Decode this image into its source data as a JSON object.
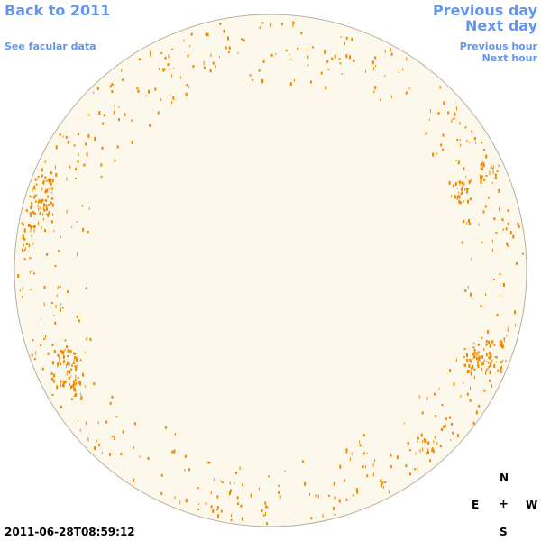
{
  "nav": {
    "back_label": "Back to 2011",
    "facular_label": "See facular data",
    "prev_day_label": "Previous day",
    "next_day_label": "Next day",
    "prev_hour_label": "Previous hour",
    "next_hour_label": "Next hour"
  },
  "compass": {
    "north": "N",
    "east": "E",
    "center": "+",
    "west": "W",
    "south": "S"
  },
  "timestamp": "2011-06-28T08:59:12",
  "colors": {
    "link": "#6495ed",
    "disk_fill": "#fdf8ec",
    "disk_outline": "#b8b0a0",
    "feature": "#ee8800"
  }
}
